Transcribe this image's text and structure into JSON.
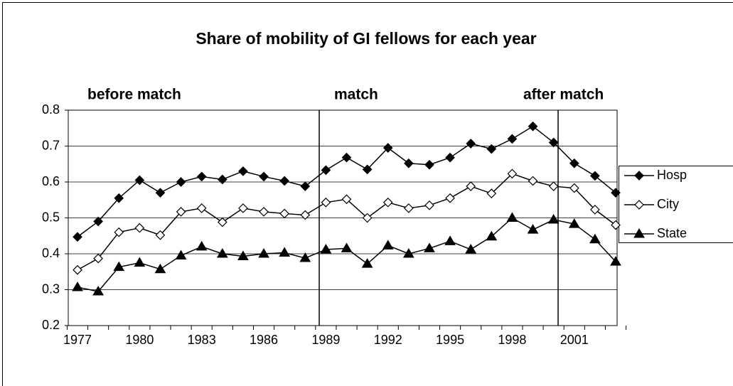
{
  "chart_data": {
    "type": "line",
    "title": "Share of mobility of GI fellows for each year",
    "annotations": [
      "before match",
      "match",
      "after match"
    ],
    "categories": [
      "1977",
      null,
      null,
      "1980",
      null,
      null,
      "1983",
      null,
      null,
      "1986",
      null,
      null,
      "1989",
      null,
      null,
      "1992",
      null,
      null,
      "1995",
      null,
      null,
      "1998",
      null,
      null,
      "2001",
      null,
      null
    ],
    "ylim": [
      0.2,
      0.8
    ],
    "yticks": [
      0.2,
      0.3,
      0.4,
      0.5,
      0.6,
      0.7,
      0.8
    ],
    "grid": true,
    "legend": "right",
    "series": [
      {
        "name": "Hosp",
        "color": "#000000",
        "marker": "diamond-filled",
        "values": [
          0.447,
          0.49,
          0.555,
          0.605,
          0.57,
          0.6,
          0.615,
          0.607,
          0.63,
          0.615,
          0.603,
          0.588,
          0.633,
          0.668,
          0.635,
          0.695,
          0.652,
          0.648,
          0.668,
          0.707,
          0.692,
          0.72,
          0.755,
          0.71,
          0.652,
          0.617,
          0.57
        ]
      },
      {
        "name": "City",
        "color": "#000000",
        "marker": "diamond-open",
        "values": [
          0.355,
          0.387,
          0.46,
          0.472,
          0.452,
          0.517,
          0.527,
          0.488,
          0.527,
          0.517,
          0.512,
          0.508,
          0.543,
          0.552,
          0.5,
          0.543,
          0.527,
          0.535,
          0.555,
          0.588,
          0.568,
          0.623,
          0.603,
          0.588,
          0.583,
          0.523,
          0.48
        ]
      },
      {
        "name": "State",
        "color": "#000000",
        "marker": "triangle",
        "values": [
          0.307,
          0.295,
          0.363,
          0.375,
          0.357,
          0.395,
          0.42,
          0.4,
          0.393,
          0.4,
          0.403,
          0.388,
          0.412,
          0.415,
          0.372,
          0.423,
          0.4,
          0.415,
          0.435,
          0.412,
          0.448,
          0.5,
          0.467,
          0.495,
          0.483,
          0.44,
          0.378
        ]
      }
    ]
  }
}
